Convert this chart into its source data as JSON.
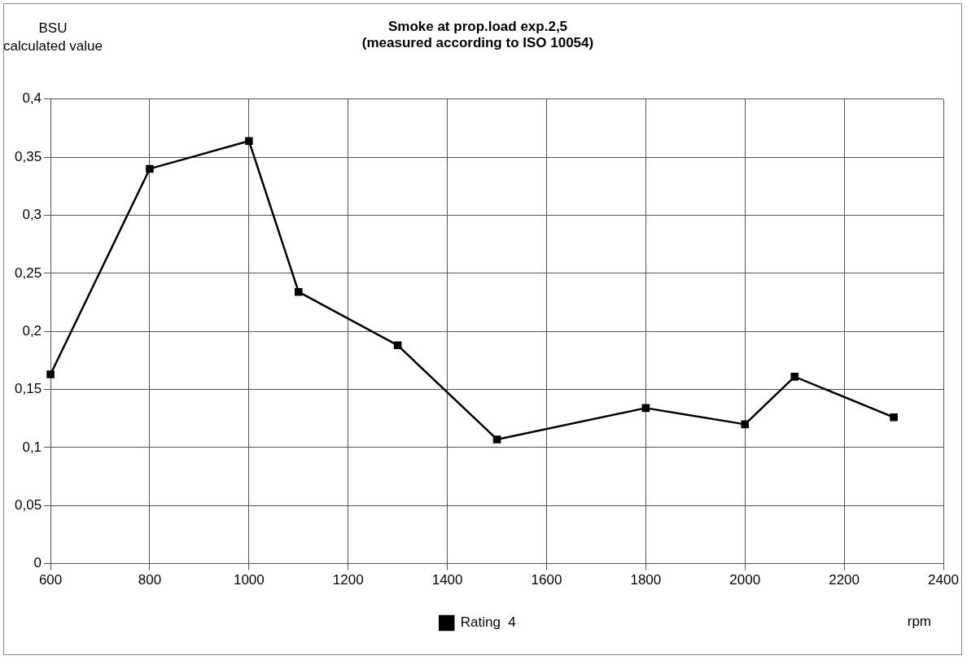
{
  "chart_data": {
    "type": "line",
    "title": "Smoke at prop.load exp.2,5\n(measured according to ISO 10054)",
    "ylabel": "BSU\ncalculated value",
    "xlabel": "rpm",
    "x": [
      600,
      800,
      1000,
      1100,
      1300,
      1500,
      1800,
      2000,
      2100,
      2300
    ],
    "series": [
      {
        "name": "Rating  4",
        "color": "#000000",
        "values": [
          0.163,
          0.34,
          0.364,
          0.234,
          0.188,
          0.107,
          0.134,
          0.12,
          0.161,
          0.126
        ]
      }
    ],
    "xlim": [
      600,
      2400
    ],
    "xticks": [
      600,
      800,
      1000,
      1200,
      1400,
      1600,
      1800,
      2000,
      2200,
      2400
    ],
    "ylim": [
      0,
      0.4
    ],
    "yticks": [
      {
        "value": 0,
        "label": "0"
      },
      {
        "value": 0.05,
        "label": "0,05"
      },
      {
        "value": 0.1,
        "label": "0,1"
      },
      {
        "value": 0.15,
        "label": "0,15"
      },
      {
        "value": 0.2,
        "label": "0,2"
      },
      {
        "value": 0.25,
        "label": "0,25"
      },
      {
        "value": 0.3,
        "label": "0,3"
      },
      {
        "value": 0.35,
        "label": "0,35"
      },
      {
        "value": 0.4,
        "label": "0,4"
      }
    ],
    "grid": true,
    "legend": "bottom",
    "marker": "square",
    "line_style": "solid"
  }
}
